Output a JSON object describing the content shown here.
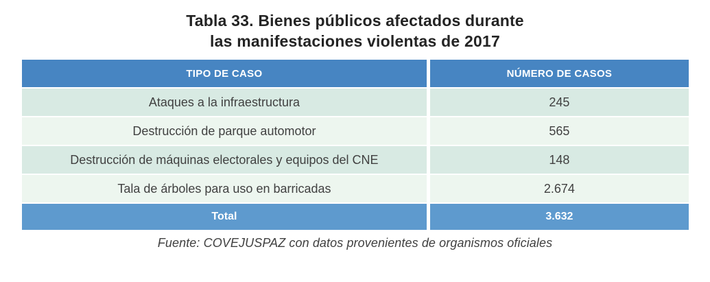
{
  "title": {
    "line1": "Tabla 33. Bienes públicos afectados durante",
    "line2": "las manifestaciones violentas de 2017"
  },
  "table": {
    "columns": [
      "TIPO DE CASO",
      "NÚMERO DE CASOS"
    ],
    "rows": [
      {
        "tipo": "Ataques a la infraestructura",
        "casos": "245"
      },
      {
        "tipo": "Destrucción de parque automotor",
        "casos": "565"
      },
      {
        "tipo": "Destrucción de máquinas electorales y equipos del CNE",
        "casos": "148"
      },
      {
        "tipo": "Tala de árboles para uso en barricadas",
        "casos": "2.674"
      }
    ],
    "total": {
      "label": "Total",
      "value": "3.632"
    }
  },
  "source": "Fuente: COVEJUSPAZ con datos provenientes de organismos oficiales",
  "colors": {
    "header_blue": "#4785c2",
    "total_blue": "#5e9ace",
    "row_mint": "#d8eae3",
    "row_light": "#edf6ef",
    "title_text": "#242424",
    "body_text": "#414141",
    "header_text": "#ffffff"
  },
  "chart_data": {
    "type": "table",
    "title": "Tabla 33. Bienes públicos afectados durante las manifestaciones violentas de 2017",
    "columns": [
      "TIPO DE CASO",
      "NÚMERO DE CASOS"
    ],
    "categories": [
      "Ataques a la infraestructura",
      "Destrucción de parque automotor",
      "Destrucción de máquinas electorales y equipos del CNE",
      "Tala de árboles para uso en barricadas"
    ],
    "values": [
      245,
      565,
      148,
      2674
    ],
    "total": 3632,
    "source": "Fuente: COVEJUSPAZ con datos provenientes de organismos oficiales"
  }
}
